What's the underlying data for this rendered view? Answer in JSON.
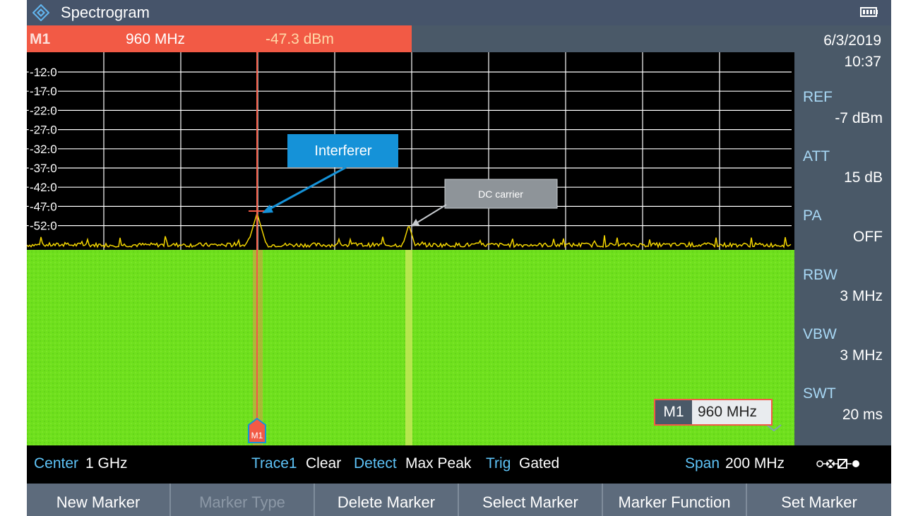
{
  "title_bar": {
    "app_title": "Spectrogram",
    "icons": [
      "rohde-schwarz-logo-icon",
      "battery-icon"
    ]
  },
  "marker_readout": {
    "marker": "M1",
    "frequency": "960 MHz",
    "level": "-47.3 dBm"
  },
  "graph": {
    "y_ticks": [
      "-12.0",
      "-17.0",
      "-22.0",
      "-27.0",
      "-32.0",
      "-37.0",
      "-42.0",
      "-47.0",
      "-52.0"
    ],
    "marker_badge": "M1",
    "callouts": {
      "interferer": "Interferer",
      "dc_carrier": "DC carrier"
    },
    "marker_box": {
      "label": "M1",
      "value": "960 MHz"
    },
    "colors": {
      "trace": "#f2d400",
      "waterfall": "#6fe01d",
      "marker": "#f25a45",
      "callout_blue": "#1592d8",
      "callout_gray": "#8e9499"
    }
  },
  "side_panel": {
    "date": "6/3/2019",
    "time": "10:37",
    "items": [
      {
        "label": "REF",
        "value": "-7 dBm"
      },
      {
        "label": "ATT",
        "value": "15 dB"
      },
      {
        "label": "PA",
        "value": "OFF"
      },
      {
        "label": "RBW",
        "value": "3 MHz"
      },
      {
        "label": "VBW",
        "value": "3 MHz"
      },
      {
        "label": "SWT",
        "value": "20 ms"
      }
    ]
  },
  "status_bar": {
    "center_label": "Center",
    "center_value": "1 GHz",
    "trace_label": "Trace1",
    "trace_value": "Clear",
    "detect_label": "Detect",
    "detect_value": "Max Peak",
    "trig_label": "Trig",
    "trig_value": "Gated",
    "span_label": "Span",
    "span_value": "200 MHz",
    "connection_icon": "connection-status-icon"
  },
  "softkeys": [
    {
      "label": "New Marker",
      "enabled": true
    },
    {
      "label": "Marker Type",
      "enabled": false
    },
    {
      "label": "Delete Marker",
      "enabled": true
    },
    {
      "label": "Select Marker",
      "enabled": true
    },
    {
      "label": "Marker Function",
      "enabled": true
    },
    {
      "label": "Set Marker",
      "enabled": true
    }
  ]
}
